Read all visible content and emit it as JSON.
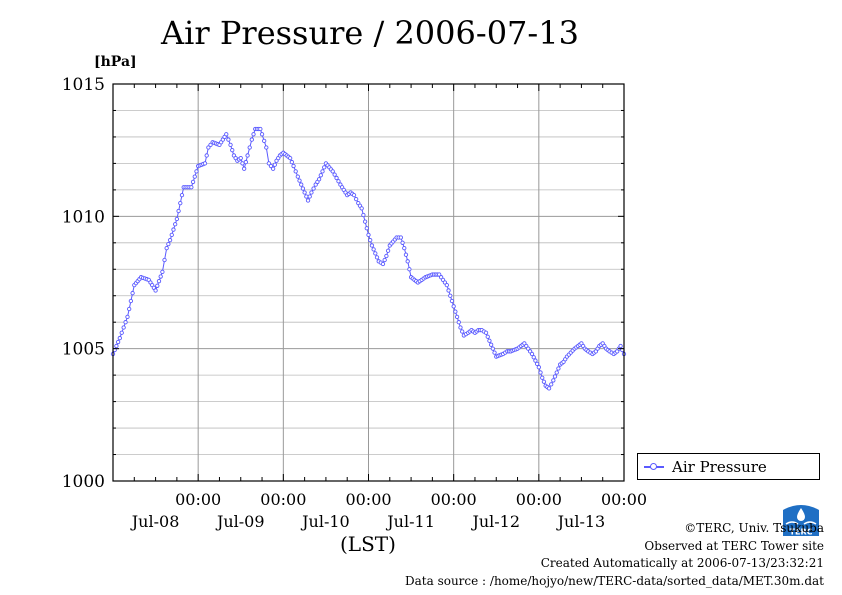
{
  "chart_data": {
    "type": "line",
    "title": "Air Pressure / 2006-07-13",
    "ylabel": "[hPa]",
    "xlabel": "(LST)",
    "ylim": [
      1000,
      1015
    ],
    "y_ticks": [
      "1000",
      "1005",
      "1010",
      "1015"
    ],
    "xlim_days": [
      7.0,
      13.0
    ],
    "x_ticks": [
      {
        "time": "00:00",
        "date": "Jul-08",
        "day": 8
      },
      {
        "time": "00:00",
        "date": "Jul-09",
        "day": 9
      },
      {
        "time": "00:00",
        "date": "Jul-10",
        "day": 10
      },
      {
        "time": "00:00",
        "date": "Jul-11",
        "day": 11
      },
      {
        "time": "00:00",
        "date": "Jul-12",
        "day": 12
      },
      {
        "time": "00:00",
        "date": "Jul-13",
        "day": 13
      }
    ],
    "legend_position": "right",
    "grid": true,
    "series": [
      {
        "name": "Air Pressure",
        "color": "#5a5aff",
        "x": [
          7.0,
          7.08,
          7.17,
          7.25,
          7.33,
          7.42,
          7.5,
          7.58,
          7.63,
          7.67,
          7.75,
          7.83,
          7.92,
          8.0,
          8.08,
          8.12,
          8.17,
          8.25,
          8.33,
          8.38,
          8.42,
          8.46,
          8.5,
          8.54,
          8.58,
          8.63,
          8.67,
          8.73,
          8.75,
          8.8,
          8.83,
          8.88,
          8.92,
          8.96,
          9.0,
          9.04,
          9.08,
          9.12,
          9.17,
          9.25,
          9.29,
          9.33,
          9.38,
          9.42,
          9.46,
          9.5,
          9.58,
          9.67,
          9.75,
          9.79,
          9.83,
          9.88,
          9.92,
          9.96,
          10.0,
          10.04,
          10.08,
          10.12,
          10.17,
          10.21,
          10.25,
          10.33,
          10.38,
          10.42,
          10.46,
          10.5,
          10.58,
          10.67,
          10.75,
          10.83,
          10.92,
          10.96,
          11.0,
          11.04,
          11.08,
          11.12,
          11.17,
          11.21,
          11.25,
          11.29,
          11.33,
          11.38,
          11.42,
          11.46,
          11.5,
          11.58,
          11.63,
          11.67,
          11.75,
          11.83,
          11.92,
          12.0,
          12.04,
          12.08,
          12.12,
          12.17,
          12.21,
          12.25,
          12.29,
          12.33,
          12.42,
          12.5,
          12.54,
          12.58,
          12.63,
          12.67,
          12.71,
          12.75,
          12.79,
          12.83,
          12.88,
          12.92,
          12.96,
          13.0
        ],
        "values": [
          1004.8,
          1005.4,
          1006.2,
          1007.4,
          1007.7,
          1007.6,
          1007.2,
          1007.9,
          1008.8,
          1009.1,
          1009.9,
          1011.1,
          1011.1,
          1011.9,
          1012.0,
          1012.6,
          1012.8,
          1012.7,
          1013.1,
          1012.7,
          1012.3,
          1012.1,
          1012.2,
          1011.8,
          1012.3,
          1012.9,
          1013.3,
          1013.3,
          1013.1,
          1012.6,
          1012.0,
          1011.8,
          1012.1,
          1012.3,
          1012.4,
          1012.3,
          1012.2,
          1011.9,
          1011.5,
          1010.9,
          1010.6,
          1010.9,
          1011.2,
          1011.4,
          1011.7,
          1012.0,
          1011.7,
          1011.2,
          1010.8,
          1010.9,
          1010.8,
          1010.5,
          1010.3,
          1009.8,
          1009.3,
          1008.9,
          1008.6,
          1008.3,
          1008.2,
          1008.5,
          1008.9,
          1009.2,
          1009.2,
          1008.8,
          1008.3,
          1007.7,
          1007.5,
          1007.7,
          1007.8,
          1007.8,
          1007.4,
          1007.0,
          1006.6,
          1006.2,
          1005.8,
          1005.5,
          1005.6,
          1005.7,
          1005.6,
          1005.7,
          1005.7,
          1005.6,
          1005.3,
          1005.0,
          1004.7,
          1004.8,
          1004.9,
          1004.9,
          1005.0,
          1005.2,
          1004.8,
          1004.3,
          1003.9,
          1003.6,
          1003.5,
          1003.8,
          1004.1,
          1004.4,
          1004.5,
          1004.7,
          1005.0,
          1005.2,
          1005.0,
          1004.9,
          1004.8,
          1004.9,
          1005.1,
          1005.2,
          1005.0,
          1004.9,
          1004.8,
          1004.9,
          1005.1,
          1004.8
        ]
      }
    ]
  },
  "footer": {
    "copyright": "©TERC, Univ. Tsukuba",
    "observed": "Observed at TERC Tower site",
    "created": "Created Automatically at 2006-07-13/23:32:21",
    "source": "Data source : /home/hojyo/new/TERC-data/sorted_data/MET.30m.dat",
    "logo_text": "TERC"
  }
}
